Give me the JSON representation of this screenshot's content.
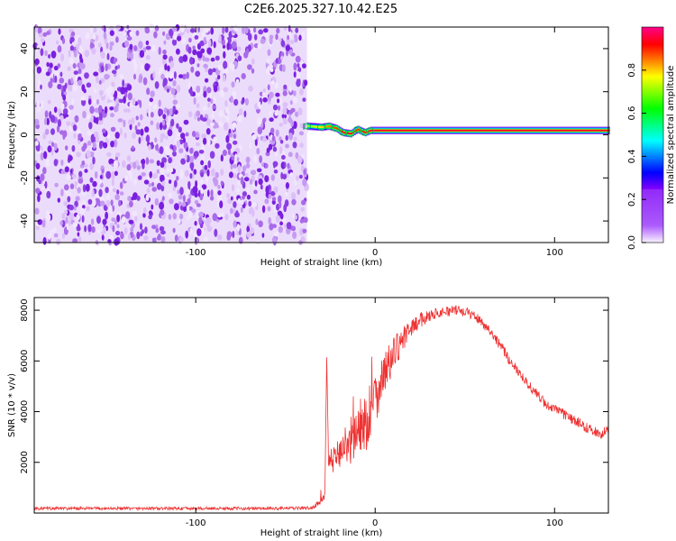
{
  "title": "C2E6.2025.327.10.42.E25",
  "chart_data": [
    {
      "type": "heatmap",
      "xlabel": "Height of straight line (km)",
      "ylabel": "Frequency (Hz)",
      "xlim": [
        -190,
        130
      ],
      "ylim": [
        -50,
        50
      ],
      "x_ticks": [
        -100,
        0,
        100
      ],
      "x_tick_labels": [
        "-100",
        "0",
        "100"
      ],
      "y_ticks": [
        -40,
        -20,
        0,
        20,
        40
      ],
      "y_tick_labels": [
        "-40",
        "-20",
        "0",
        "20",
        "40"
      ],
      "regions": [
        {
          "x": [
            -190,
            -38
          ],
          "y": [
            -50,
            50
          ],
          "description": "scattered noise, amplitude ~0.1-0.25"
        },
        {
          "x": [
            -38,
            130
          ],
          "y": [
            -50,
            50
          ],
          "description": "empty (zero amplitude)"
        }
      ],
      "band": {
        "x": [
          -38,
          -30,
          -26,
          -22,
          -18,
          -14,
          -10,
          -6,
          -3,
          0,
          20,
          60,
          100,
          130
        ],
        "center_freq": [
          4,
          3.5,
          4,
          3,
          1,
          0.5,
          2.5,
          1,
          2,
          2,
          2,
          2,
          2,
          2
        ],
        "peak_amplitude": [
          0.7,
          0.8,
          0.85,
          0.9,
          0.95,
          0.95,
          0.9,
          0.95,
          0.95,
          0.95,
          0.95,
          0.95,
          0.95,
          0.95
        ]
      },
      "colorbar": {
        "label": "Normalized spectral amplitude",
        "range": [
          0,
          1
        ],
        "ticks": [
          0.0,
          0.2,
          0.4,
          0.6,
          0.8
        ],
        "tick_labels": [
          "0.0",
          "0.2",
          "0.4",
          "0.6",
          "0.8"
        ]
      },
      "grid": false
    },
    {
      "type": "line",
      "xlabel": "Height of straight line (km)",
      "ylabel": "SNR (10 * v/v)",
      "xlim": [
        -190,
        130
      ],
      "ylim": [
        0,
        8500
      ],
      "x_ticks": [
        -100,
        0,
        100
      ],
      "x_tick_labels": [
        "-100",
        "0",
        "100"
      ],
      "y_ticks": [
        2000,
        4000,
        6000,
        8000
      ],
      "y_tick_labels": [
        "2000",
        "4000",
        "6000",
        "8000"
      ],
      "series": [
        {
          "color": "#ee3333",
          "x": [
            -190,
            -150,
            -100,
            -60,
            -35,
            -28,
            -27,
            -26,
            -25,
            -20,
            -15,
            -10,
            -5,
            0,
            5,
            10,
            15,
            20,
            25,
            30,
            35,
            40,
            45,
            50,
            55,
            60,
            65,
            70,
            75,
            80,
            85,
            90,
            95,
            100,
            105,
            110,
            115,
            120,
            125,
            130
          ],
          "y": [
            180,
            180,
            180,
            180,
            200,
            600,
            6300,
            1800,
            2000,
            2400,
            2800,
            3200,
            3600,
            4600,
            5500,
            6200,
            6800,
            7300,
            7600,
            7800,
            7900,
            7950,
            8000,
            7950,
            7800,
            7500,
            7100,
            6600,
            6000,
            5600,
            5100,
            4700,
            4300,
            4100,
            3900,
            3700,
            3500,
            3300,
            3100,
            3300
          ],
          "noise_amplitude": [
            60,
            60,
            60,
            60,
            60,
            150,
            150,
            500,
            500,
            600,
            900,
            1200,
            1200,
            1100,
            900,
            700,
            500,
            350,
            300,
            250,
            200,
            200,
            200,
            200,
            200,
            200,
            200,
            200,
            200,
            200,
            200,
            200,
            200,
            200,
            200,
            200,
            200,
            200,
            200,
            200
          ]
        }
      ],
      "grid": false
    }
  ]
}
